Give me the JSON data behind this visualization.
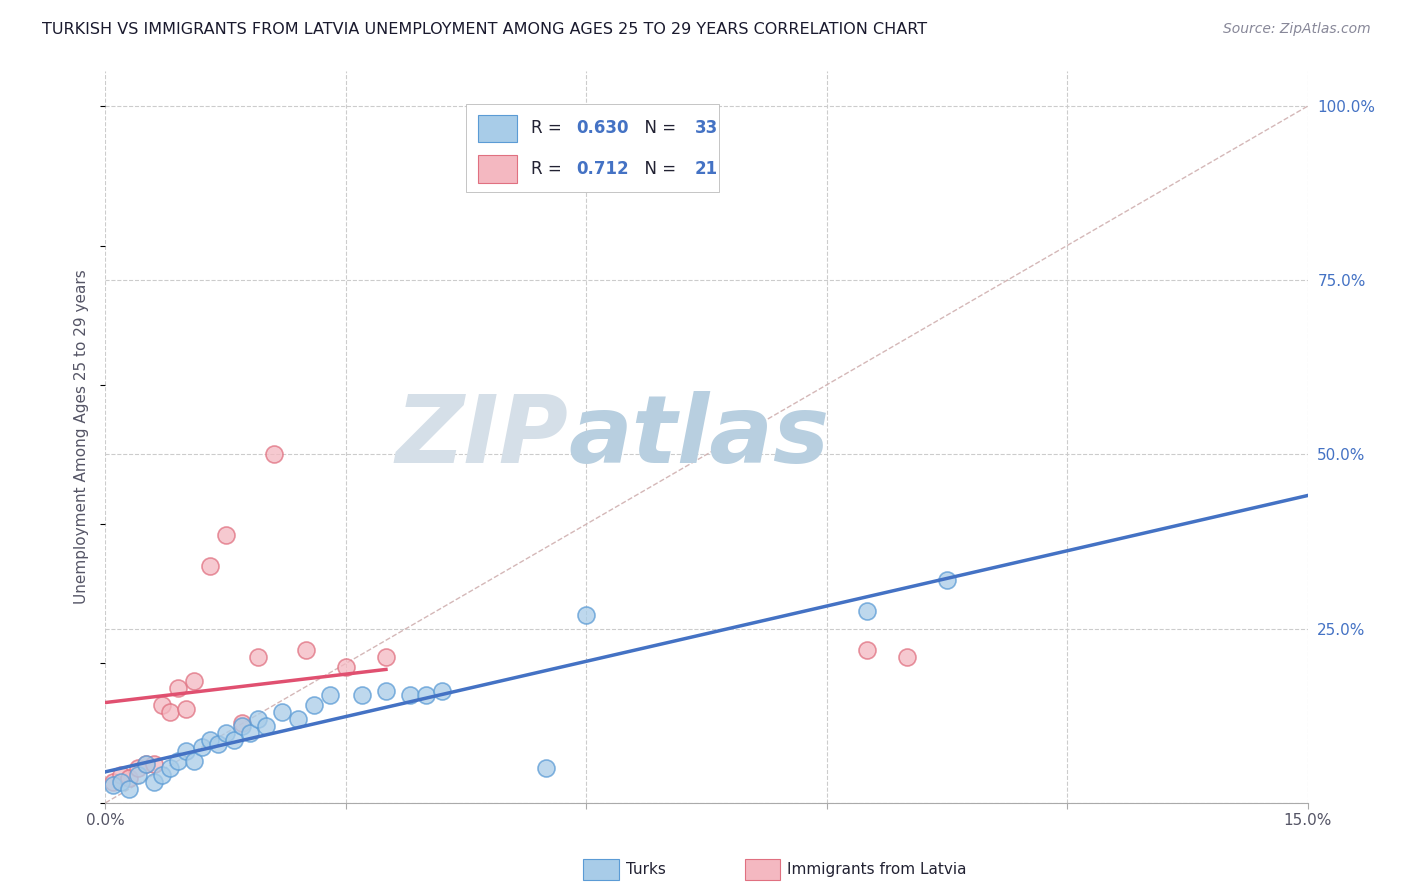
{
  "title": "TURKISH VS IMMIGRANTS FROM LATVIA UNEMPLOYMENT AMONG AGES 25 TO 29 YEARS CORRELATION CHART",
  "source": "Source: ZipAtlas.com",
  "ylabel": "Unemployment Among Ages 25 to 29 years",
  "xlim": [
    0.0,
    0.15
  ],
  "ylim": [
    0.0,
    1.05
  ],
  "xticks": [
    0.0,
    0.03,
    0.06,
    0.09,
    0.12,
    0.15
  ],
  "xticklabels": [
    "0.0%",
    "",
    "",
    "",
    "",
    "15.0%"
  ],
  "yticks_right": [
    0.0,
    0.25,
    0.5,
    0.75,
    1.0
  ],
  "yticklabels_right": [
    "",
    "25.0%",
    "50.0%",
    "75.0%",
    "100.0%"
  ],
  "turks_R": "0.630",
  "turks_N": "33",
  "latvia_R": "0.712",
  "latvia_N": "21",
  "turks_color": "#a8cce8",
  "latvia_color": "#f4b8c1",
  "turks_edge_color": "#5b9bd5",
  "latvia_edge_color": "#e07080",
  "turks_line_color": "#4472c4",
  "latvia_line_color": "#e05070",
  "refline_color": "#d0b0b0",
  "grid_color": "#cccccc",
  "watermark_zip_color": "#c8d8e8",
  "watermark_atlas_color": "#b0c8e0",
  "title_color": "#1a1a2e",
  "axis_label_color": "#555566",
  "right_axis_color": "#4472c4",
  "turks_x": [
    0.001,
    0.002,
    0.003,
    0.004,
    0.005,
    0.006,
    0.007,
    0.008,
    0.009,
    0.01,
    0.011,
    0.012,
    0.013,
    0.014,
    0.015,
    0.016,
    0.017,
    0.018,
    0.019,
    0.02,
    0.022,
    0.024,
    0.026,
    0.028,
    0.032,
    0.035,
    0.038,
    0.04,
    0.042,
    0.055,
    0.06,
    0.095,
    0.105
  ],
  "turks_y": [
    0.025,
    0.03,
    0.02,
    0.04,
    0.055,
    0.03,
    0.04,
    0.05,
    0.06,
    0.075,
    0.06,
    0.08,
    0.09,
    0.085,
    0.1,
    0.09,
    0.11,
    0.1,
    0.12,
    0.11,
    0.13,
    0.12,
    0.14,
    0.155,
    0.155,
    0.16,
    0.155,
    0.155,
    0.16,
    0.05,
    0.27,
    0.275,
    0.32
  ],
  "latvia_x": [
    0.001,
    0.002,
    0.003,
    0.004,
    0.005,
    0.006,
    0.007,
    0.008,
    0.009,
    0.01,
    0.011,
    0.013,
    0.015,
    0.017,
    0.019,
    0.021,
    0.025,
    0.03,
    0.035,
    0.095,
    0.1
  ],
  "latvia_y": [
    0.03,
    0.04,
    0.035,
    0.05,
    0.055,
    0.055,
    0.14,
    0.13,
    0.165,
    0.135,
    0.175,
    0.34,
    0.385,
    0.115,
    0.21,
    0.5,
    0.22,
    0.195,
    0.21,
    0.22,
    0.21
  ],
  "turks_line_x_start": 0.0,
  "turks_line_x_end": 0.15,
  "latvia_line_x_start": 0.0,
  "latvia_line_x_end": 0.035
}
